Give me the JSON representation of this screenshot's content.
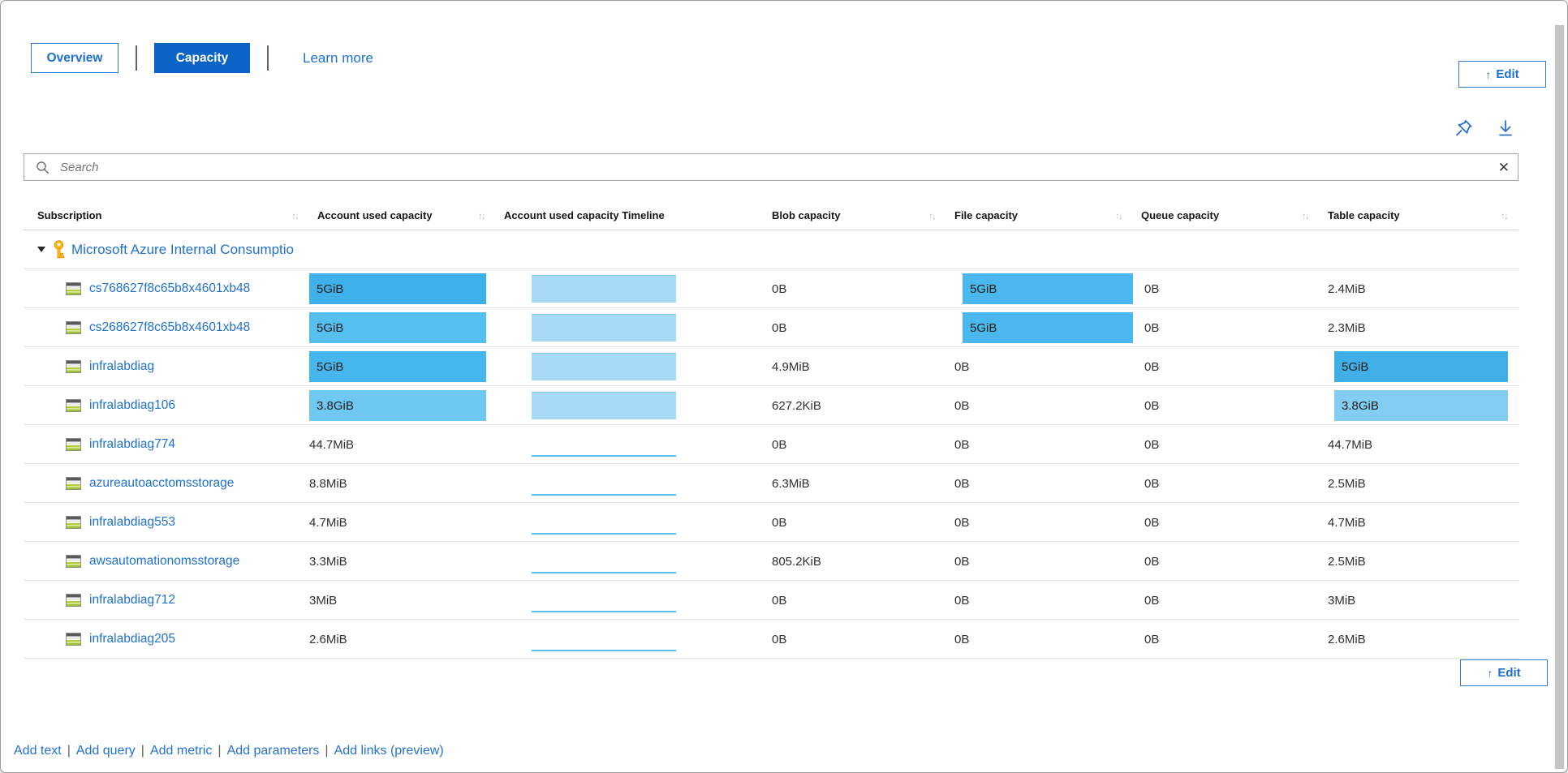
{
  "tabs": {
    "overview": "Overview",
    "capacity": "Capacity",
    "learn_more": "Learn more"
  },
  "edit": {
    "arrow": "↑",
    "label": "Edit"
  },
  "icons": {
    "search": "magnifier-icon",
    "clear": "✕",
    "pin": "pin-icon",
    "download": "download-icon",
    "sort": "↑↓",
    "group_caret": "caret-down-icon",
    "group_key": "key-icon",
    "row": "storage-account-icon"
  },
  "search": {
    "placeholder": "Search",
    "value": ""
  },
  "colors": {
    "accent_blue": "#0b63c6",
    "link_blue": "#1e70d2",
    "bar_strong": "#3fb1ea",
    "bar_mid": "#4ab8ee",
    "bar_light": "#6fc8f2",
    "timeline_fill": "#a9dbf6",
    "timeline_line": "#57c0ee"
  },
  "table": {
    "columns": [
      {
        "label": "Subscription",
        "sortable": true
      },
      {
        "label": "Account used capacity",
        "sortable": true
      },
      {
        "label": "Account used capacity Timeline",
        "sortable": false
      },
      {
        "label": "Blob capacity",
        "sortable": true
      },
      {
        "label": "File capacity",
        "sortable": true
      },
      {
        "label": "Queue capacity",
        "sortable": true
      },
      {
        "label": "Table capacity",
        "sortable": true
      }
    ],
    "group": {
      "label": "Microsoft Azure Internal Consumptio"
    },
    "rows": [
      {
        "name": "cs768627f8c65b8x4601xb48",
        "account": {
          "text": "5GiB",
          "fill": "#3fb1ea"
        },
        "timeline": {
          "type": "area"
        },
        "blob": {
          "text": "0B"
        },
        "file": {
          "text": "5GiB",
          "fill": "#4ab8ee"
        },
        "queue": {
          "text": "0B"
        },
        "table": {
          "text": "2.4MiB"
        }
      },
      {
        "name": "cs268627f8c65b8x4601xb48",
        "account": {
          "text": "5GiB",
          "fill": "#55bff0"
        },
        "timeline": {
          "type": "area"
        },
        "blob": {
          "text": "0B"
        },
        "file": {
          "text": "5GiB",
          "fill": "#4ab8ee"
        },
        "queue": {
          "text": "0B"
        },
        "table": {
          "text": "2.3MiB"
        }
      },
      {
        "name": "infralabdiag",
        "account": {
          "text": "5GiB",
          "fill": "#46b6ee"
        },
        "timeline": {
          "type": "area"
        },
        "blob": {
          "text": "4.9MiB"
        },
        "file": {
          "text": "0B"
        },
        "queue": {
          "text": "0B"
        },
        "table": {
          "text": "5GiB",
          "fill": "#3fafe6"
        }
      },
      {
        "name": "infralabdiag106",
        "account": {
          "text": "3.8GiB",
          "fill": "#6fc8f2"
        },
        "timeline": {
          "type": "area"
        },
        "blob": {
          "text": "627.2KiB"
        },
        "file": {
          "text": "0B"
        },
        "queue": {
          "text": "0B"
        },
        "table": {
          "text": "3.8GiB",
          "fill": "#83cdf3"
        }
      },
      {
        "name": "infralabdiag774",
        "account": {
          "text": "44.7MiB"
        },
        "timeline": {
          "type": "line"
        },
        "blob": {
          "text": "0B"
        },
        "file": {
          "text": "0B"
        },
        "queue": {
          "text": "0B"
        },
        "table": {
          "text": "44.7MiB"
        }
      },
      {
        "name": "azureautoacctomsstorage",
        "account": {
          "text": "8.8MiB"
        },
        "timeline": {
          "type": "line"
        },
        "blob": {
          "text": "6.3MiB"
        },
        "file": {
          "text": "0B"
        },
        "queue": {
          "text": "0B"
        },
        "table": {
          "text": "2.5MiB"
        }
      },
      {
        "name": "infralabdiag553",
        "account": {
          "text": "4.7MiB"
        },
        "timeline": {
          "type": "line"
        },
        "blob": {
          "text": "0B"
        },
        "file": {
          "text": "0B"
        },
        "queue": {
          "text": "0B"
        },
        "table": {
          "text": "4.7MiB"
        }
      },
      {
        "name": "awsautomationomsstorage",
        "account": {
          "text": "3.3MiB"
        },
        "timeline": {
          "type": "line"
        },
        "blob": {
          "text": "805.2KiB"
        },
        "file": {
          "text": "0B"
        },
        "queue": {
          "text": "0B"
        },
        "table": {
          "text": "2.5MiB"
        }
      },
      {
        "name": "infralabdiag712",
        "account": {
          "text": "3MiB"
        },
        "timeline": {
          "type": "line"
        },
        "blob": {
          "text": "0B"
        },
        "file": {
          "text": "0B"
        },
        "queue": {
          "text": "0B"
        },
        "table": {
          "text": "3MiB"
        }
      },
      {
        "name": "infralabdiag205",
        "account": {
          "text": "2.6MiB"
        },
        "timeline": {
          "type": "line"
        },
        "blob": {
          "text": "0B"
        },
        "file": {
          "text": "0B"
        },
        "queue": {
          "text": "0B"
        },
        "table": {
          "text": "2.6MiB"
        }
      }
    ]
  },
  "footer": {
    "links": [
      "Add text",
      "Add query",
      "Add metric",
      "Add parameters",
      "Add links (preview)"
    ],
    "separator": "|"
  }
}
